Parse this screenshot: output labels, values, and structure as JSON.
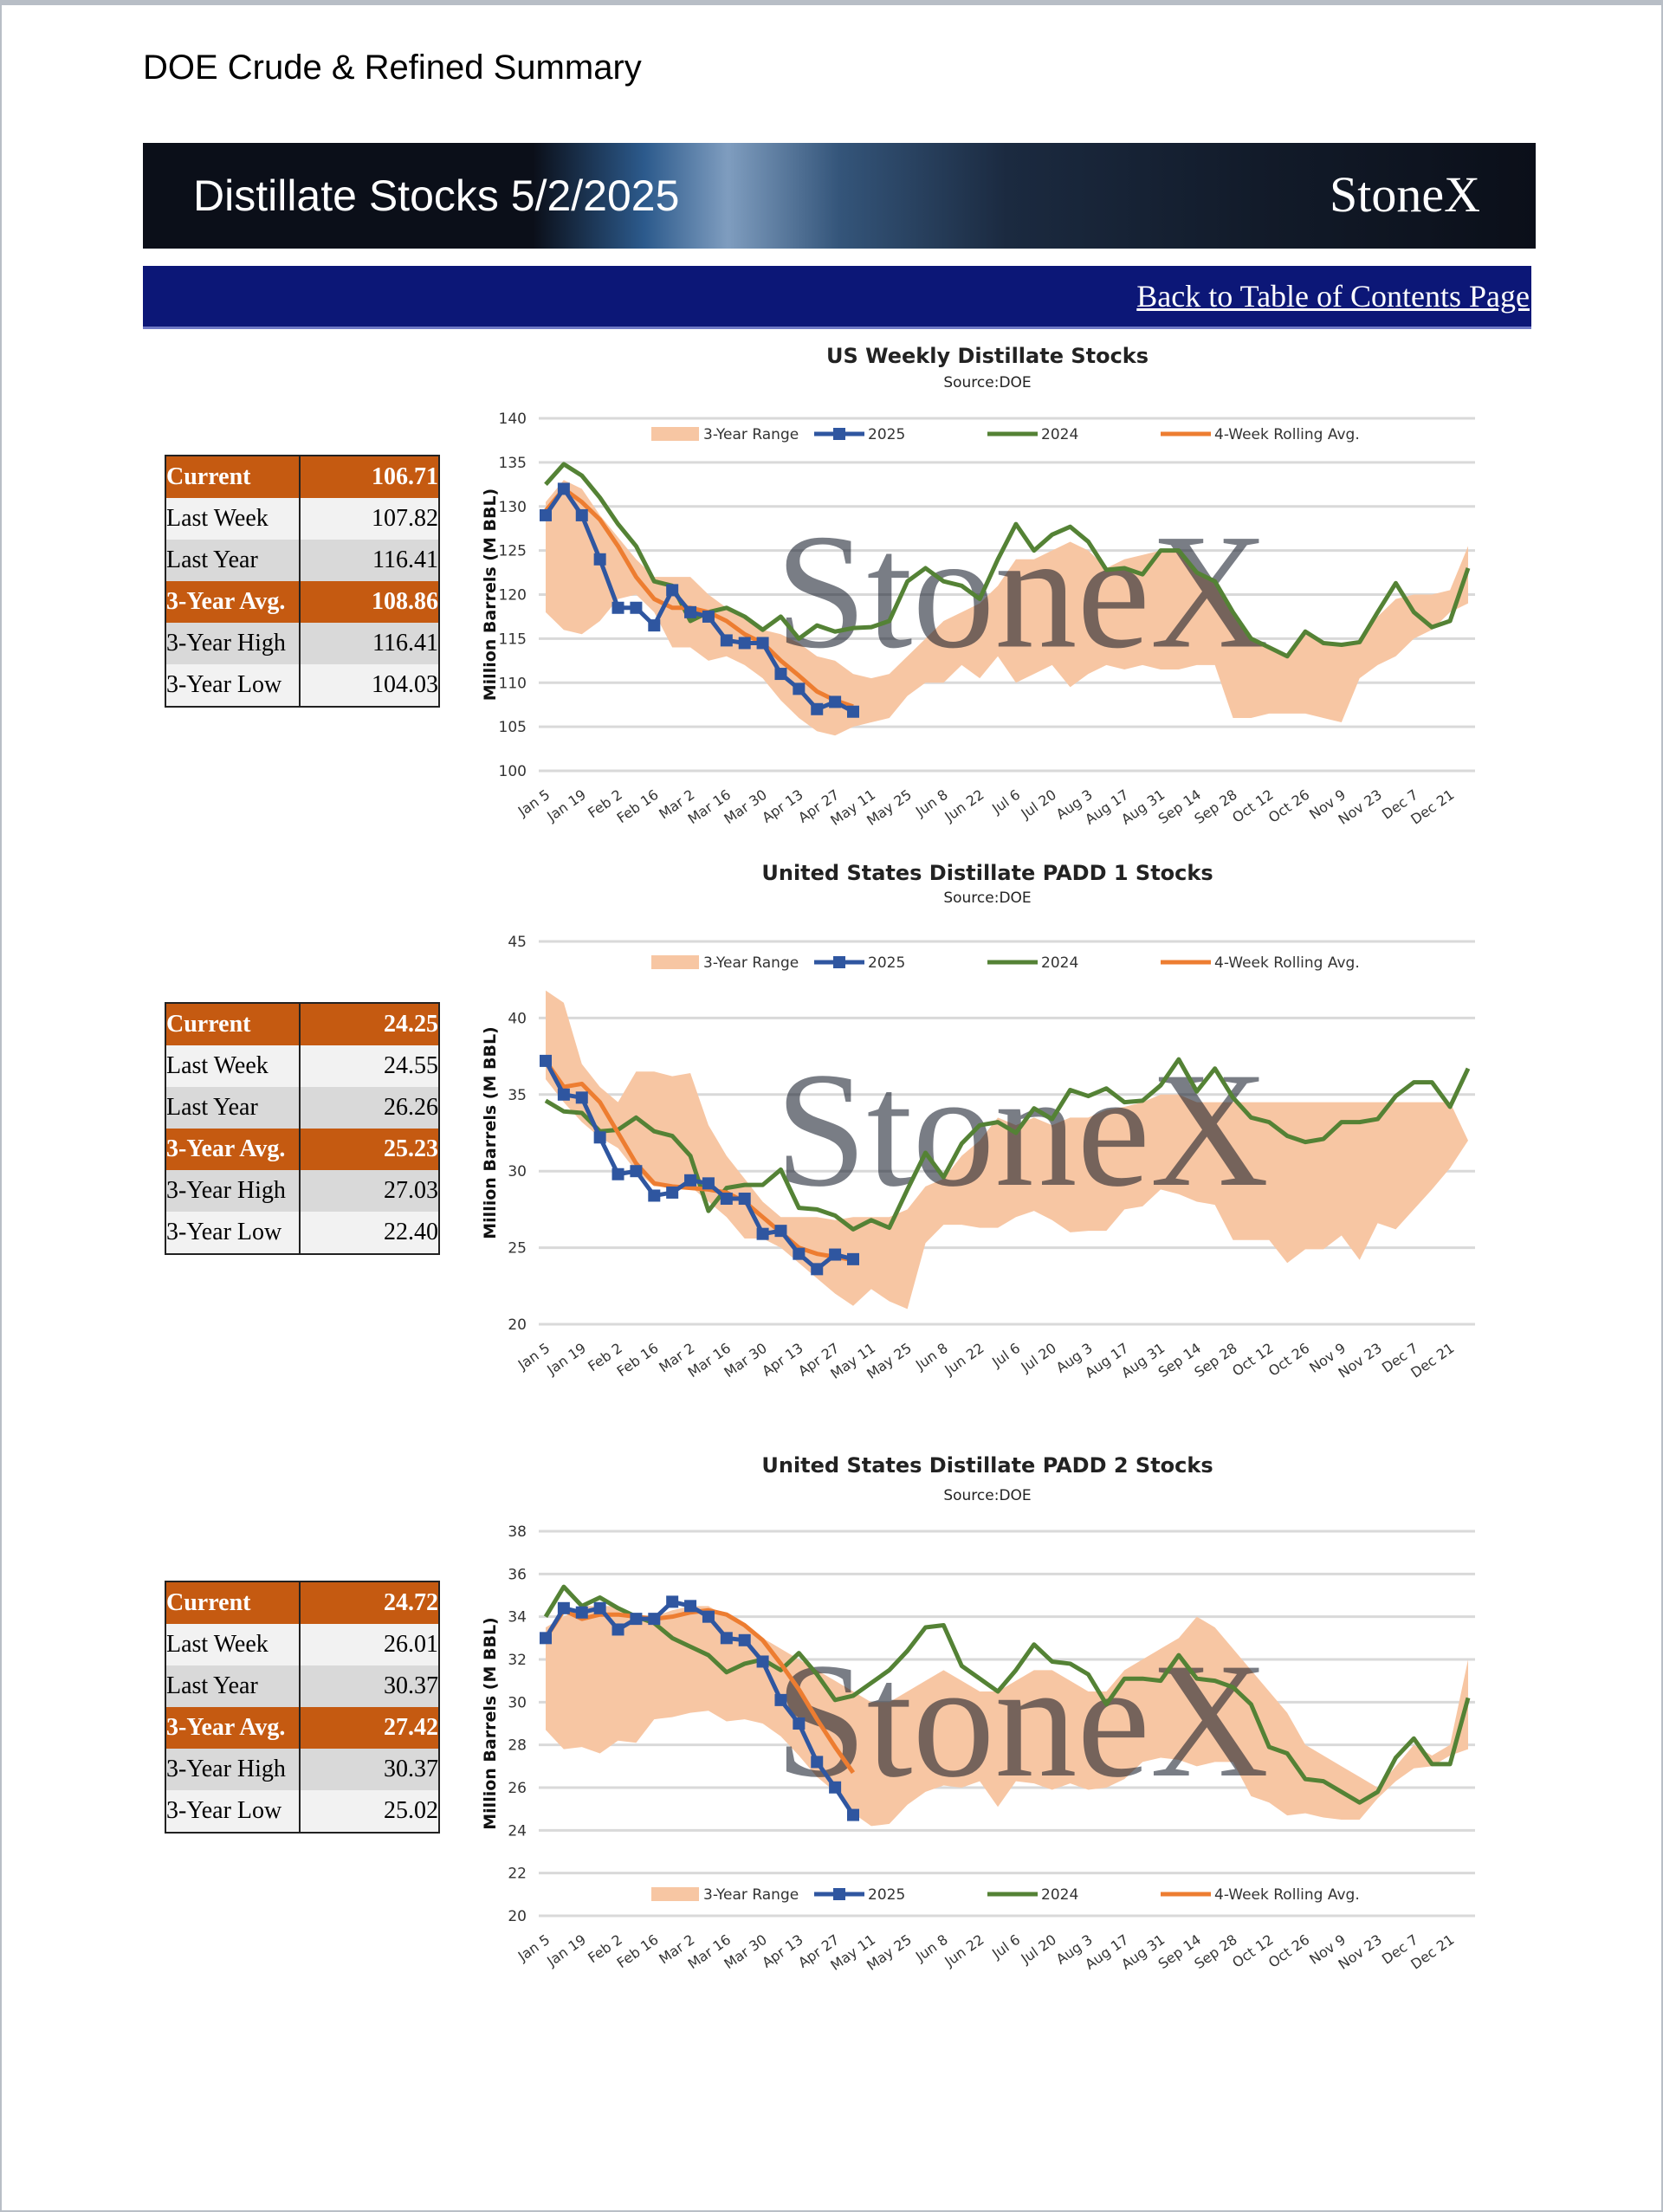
{
  "page": {
    "title": "DOE Crude & Refined Summary"
  },
  "banner": {
    "title": "Distillate Stocks 5/2/2025",
    "logo": "StoneX"
  },
  "nav": {
    "back_link": "Back to Table of Contents Page"
  },
  "colors": {
    "range": "#f7c6a3",
    "s2025": "#2f56a0",
    "s2024": "#548235",
    "rolling": "#ed7d31",
    "highlight_row": "#c55a11",
    "navbar": "#0c1777"
  },
  "tables": [
    {
      "rows": [
        {
          "label": "Current",
          "value": "106.71"
        },
        {
          "label": "Last Week",
          "value": "107.82"
        },
        {
          "label": "Last Year",
          "value": "116.41"
        },
        {
          "label": "3-Year Avg.",
          "value": "108.86"
        },
        {
          "label": "3-Year High",
          "value": "116.41"
        },
        {
          "label": "3-Year Low",
          "value": "104.03"
        }
      ]
    },
    {
      "rows": [
        {
          "label": "Current",
          "value": "24.25"
        },
        {
          "label": "Last Week",
          "value": "24.55"
        },
        {
          "label": "Last Year",
          "value": "26.26"
        },
        {
          "label": "3-Year Avg.",
          "value": "25.23"
        },
        {
          "label": "3-Year High",
          "value": "27.03"
        },
        {
          "label": "3-Year Low",
          "value": "22.40"
        }
      ]
    },
    {
      "rows": [
        {
          "label": "Current",
          "value": "24.72"
        },
        {
          "label": "Last Week",
          "value": "26.01"
        },
        {
          "label": "Last Year",
          "value": "30.37"
        },
        {
          "label": "3-Year Avg.",
          "value": "27.42"
        },
        {
          "label": "3-Year High",
          "value": "30.37"
        },
        {
          "label": "3-Year Low",
          "value": "25.02"
        }
      ]
    }
  ],
  "chart_data": [
    {
      "type": "line",
      "title": "US Weekly Distillate Stocks",
      "subtitle": "Source:DOE",
      "ylabel": "Million Barrels (M BBL)",
      "ylim": [
        100,
        140
      ],
      "yticks": [
        100,
        105,
        110,
        115,
        120,
        125,
        130,
        135,
        140
      ],
      "x_tick_labels": [
        "Jan 5",
        "Jan 19",
        "Feb 2",
        "Feb 16",
        "Mar 2",
        "Mar 16",
        "Mar 30",
        "Apr 13",
        "Apr 27",
        "May 11",
        "May 25",
        "Jun 8",
        "Jun 22",
        "Jul 6",
        "Jul 20",
        "Aug 3",
        "Aug 17",
        "Aug 31",
        "Sep 14",
        "Sep 28",
        "Oct 12",
        "Oct 26",
        "Nov 9",
        "Nov 23",
        "Dec 7",
        "Dec 21"
      ],
      "legend": {
        "position": "top",
        "items": [
          "3-Year Range",
          "2025",
          "2024",
          "4-Week Rolling Avg."
        ]
      },
      "grid": true,
      "watermark": "StoneX",
      "range_high": [
        130.5,
        133,
        132,
        129,
        126.5,
        124,
        122,
        122,
        122,
        120,
        118.5,
        117.5,
        116,
        115.5,
        114.5,
        113,
        112.5,
        111,
        110.5,
        111,
        113,
        115,
        117,
        118,
        119,
        121,
        124,
        124,
        125,
        126,
        125,
        123,
        124,
        124.5,
        125,
        125,
        122.5,
        121.5,
        118,
        115,
        114,
        113,
        115.5,
        114.3,
        114.2,
        114.5,
        117.5,
        119.5,
        120,
        120,
        120.5,
        125.5
      ],
      "range_low": [
        118,
        116,
        115.5,
        117,
        119.5,
        120,
        118,
        114,
        114,
        112.5,
        113,
        112,
        110.5,
        108,
        106,
        104.5,
        104,
        105,
        105.5,
        106,
        108.5,
        110,
        110,
        112,
        110.5,
        113,
        110,
        111,
        112,
        109.5,
        111,
        112,
        111.5,
        112,
        111.5,
        111.5,
        112,
        112,
        106,
        106,
        106.5,
        106.5,
        106.5,
        106,
        105.5,
        110.5,
        112,
        113,
        115,
        116,
        118,
        119
      ],
      "series": [
        {
          "name": "2025",
          "values": [
            129,
            132,
            129,
            124,
            118.5,
            118.5,
            116.5,
            120.5,
            118,
            117.5,
            114.8,
            114.5,
            114.5,
            111,
            109.3,
            107,
            107.82,
            106.71
          ]
        },
        {
          "name": "2024",
          "values": [
            132.5,
            134.8,
            133.5,
            131,
            128,
            125.5,
            121.5,
            121,
            117,
            118,
            118.5,
            117.5,
            116,
            117.5,
            115,
            116.5,
            115.8,
            116.2,
            116.3,
            117,
            121.5,
            123,
            121.5,
            121,
            119.5,
            124,
            128,
            125,
            126.8,
            127.7,
            126,
            122.8,
            123,
            122.3,
            125,
            125,
            122.5,
            121.5,
            118,
            115,
            114,
            113,
            115.8,
            114.5,
            114.3,
            114.6,
            118,
            121.3,
            118,
            116.3,
            117,
            123
          ]
        },
        {
          "name": "4-Week Rolling Avg.",
          "values": [
            129.5,
            132,
            130.5,
            128.5,
            125.5,
            122,
            119.5,
            118.5,
            118.5,
            118,
            117,
            115.5,
            114.5,
            112.5,
            110.8,
            109,
            108,
            107.3
          ]
        }
      ]
    },
    {
      "type": "line",
      "title": "United States Distillate PADD 1 Stocks",
      "subtitle": "Source:DOE",
      "ylabel": "Million Barrels (M BBL)",
      "ylim": [
        20,
        45
      ],
      "yticks": [
        20,
        25,
        30,
        35,
        40,
        45
      ],
      "x_tick_labels": [
        "Jan 5",
        "Jan 19",
        "Feb 2",
        "Feb 16",
        "Mar 2",
        "Mar 16",
        "Mar 30",
        "Apr 13",
        "Apr 27",
        "May 11",
        "May 25",
        "Jun 8",
        "Jun 22",
        "Jul 6",
        "Jul 20",
        "Aug 3",
        "Aug 17",
        "Aug 31",
        "Sep 14",
        "Sep 28",
        "Oct 12",
        "Oct 26",
        "Nov 9",
        "Nov 23",
        "Dec 7",
        "Dec 21"
      ],
      "legend": {
        "position": "top",
        "items": [
          "3-Year Range",
          "2025",
          "2024",
          "4-Week Rolling Avg."
        ]
      },
      "grid": true,
      "watermark": "StoneX",
      "range_high": [
        41.8,
        41,
        37,
        35.5,
        34.5,
        36.5,
        36.5,
        36.2,
        36.4,
        33,
        31,
        29.5,
        28,
        27,
        27,
        27,
        26.8,
        27,
        27,
        27,
        27.5,
        29,
        29.5,
        31,
        32,
        33.5,
        33,
        33.5,
        33,
        33.5,
        33.5,
        34,
        34.2,
        34.5,
        35,
        35,
        34.5,
        34.5,
        34.5,
        34.5,
        34.5,
        34.5,
        34.5,
        34.5,
        34.5,
        34.5,
        34.5,
        34.5,
        34.5,
        34.5,
        34.5,
        32
      ],
      "range_low": [
        36,
        34.5,
        33.2,
        32.2,
        31.5,
        30,
        29,
        29,
        29,
        28,
        27,
        25.6,
        25.6,
        25,
        24,
        23,
        22,
        21.2,
        22.3,
        21.5,
        21,
        25.3,
        26.5,
        26.5,
        26.3,
        26.3,
        27,
        27.4,
        26.8,
        26,
        26.1,
        26.1,
        27.5,
        27.7,
        28.8,
        28.5,
        28,
        27.8,
        25.5,
        25.5,
        25.5,
        24,
        24.9,
        24.9,
        25.8,
        24.2,
        26.6,
        26.2,
        27.5,
        28.8,
        30.2,
        32
      ],
      "series": [
        {
          "name": "2025",
          "values": [
            37.2,
            35,
            34.8,
            32.2,
            29.8,
            30,
            28.4,
            28.6,
            29.4,
            29.2,
            28.2,
            28.2,
            25.9,
            26.1,
            24.6,
            23.6,
            24.55,
            24.25
          ]
        },
        {
          "name": "2024",
          "values": [
            34.6,
            33.9,
            33.8,
            32.6,
            32.7,
            33.5,
            32.6,
            32.3,
            31,
            27.4,
            28.9,
            29.1,
            29.1,
            30.1,
            27.6,
            27.5,
            27.1,
            26.2,
            26.8,
            26.3,
            28.8,
            31.2,
            29.6,
            31.8,
            33,
            33.2,
            32.5,
            34.1,
            33.4,
            35.3,
            34.9,
            35.4,
            34.5,
            34.6,
            35.6,
            37.3,
            35.2,
            36.7,
            34.8,
            33.5,
            33.2,
            32.3,
            31.9,
            32.1,
            33.2,
            33.2,
            33.4,
            34.9,
            35.8,
            35.8,
            34.2,
            36.7
          ]
        },
        {
          "name": "4-Week Rolling Avg.",
          "values": [
            37.2,
            35.5,
            35.7,
            34.5,
            32.5,
            30.5,
            29.2,
            29,
            28.9,
            28.8,
            28.6,
            28,
            27,
            26,
            25,
            24.6,
            24.4,
            24.2
          ]
        }
      ]
    },
    {
      "type": "line",
      "title": "United States Distillate PADD 2 Stocks",
      "subtitle": "Source:DOE",
      "ylabel": "Million Barrels (M BBL)",
      "ylim": [
        20,
        38
      ],
      "yticks": [
        20,
        22,
        24,
        26,
        28,
        30,
        32,
        34,
        36,
        38
      ],
      "x_tick_labels": [
        "Jan 5",
        "Jan 19",
        "Feb 2",
        "Feb 16",
        "Mar 2",
        "Mar 16",
        "Mar 30",
        "Apr 13",
        "Apr 27",
        "May 11",
        "May 25",
        "Jun 8",
        "Jun 22",
        "Jul 6",
        "Jul 20",
        "Aug 3",
        "Aug 17",
        "Aug 31",
        "Sep 14",
        "Sep 28",
        "Oct 12",
        "Oct 26",
        "Nov 9",
        "Nov 23",
        "Dec 7",
        "Dec 21"
      ],
      "legend": {
        "position": "bottom",
        "items": [
          "3-Year Range",
          "2025",
          "2024",
          "4-Week Rolling Avg."
        ]
      },
      "grid": true,
      "watermark": "StoneX",
      "range_high": [
        33.5,
        34,
        34.5,
        34.5,
        34.5,
        34,
        34,
        34.3,
        34.5,
        34.5,
        34,
        33.5,
        33,
        32.5,
        32,
        31.5,
        31,
        30.5,
        30,
        30,
        30.5,
        31,
        31.5,
        31,
        30.5,
        30.5,
        31,
        31.5,
        31.5,
        31,
        30.5,
        30.5,
        31.5,
        32,
        32.5,
        33,
        34,
        33.5,
        32.5,
        31.5,
        30.5,
        29.5,
        28,
        27.5,
        27,
        26.5,
        26,
        27,
        28,
        27.5,
        28,
        32
      ],
      "range_low": [
        28.7,
        27.8,
        27.9,
        27.6,
        28.2,
        28.1,
        29.2,
        29.3,
        29.5,
        29.6,
        29.1,
        29.2,
        29,
        28.4,
        27.5,
        26.5,
        25.8,
        24.8,
        24.2,
        24.3,
        25.2,
        25.8,
        26.1,
        26,
        26.3,
        25.1,
        26.3,
        26.2,
        25.9,
        26.2,
        25.9,
        26,
        26.4,
        27.2,
        27.4,
        27.3,
        27,
        27.2,
        27.2,
        25.6,
        25.3,
        24.7,
        24.8,
        24.6,
        24.5,
        24.5,
        25.5,
        26.3,
        26.9,
        27,
        27.5,
        27.8
      ],
      "series": [
        {
          "name": "2025",
          "values": [
            33,
            34.4,
            34.2,
            34.4,
            33.4,
            33.9,
            33.9,
            34.7,
            34.5,
            34,
            33,
            32.9,
            31.9,
            30.1,
            29,
            27.2,
            26.01,
            24.72
          ]
        },
        {
          "name": "2024",
          "values": [
            34,
            35.4,
            34.5,
            34.9,
            34.4,
            34,
            33.7,
            33,
            32.6,
            32.2,
            31.4,
            31.8,
            32,
            31.5,
            32.3,
            31.3,
            30.1,
            30.3,
            30.9,
            31.5,
            32.4,
            33.5,
            33.6,
            31.7,
            31.1,
            30.5,
            31.5,
            32.7,
            31.9,
            31.8,
            31.3,
            29.9,
            31.1,
            31.1,
            31,
            32.2,
            31.1,
            31,
            30.7,
            29.9,
            27.9,
            27.6,
            26.4,
            26.3,
            25.8,
            25.3,
            25.8,
            27.4,
            28.3,
            27.1,
            27.1,
            30.2
          ]
        },
        {
          "name": "4-Week Rolling Avg.",
          "values": [
            33,
            34.3,
            33.9,
            34.1,
            34.1,
            34,
            33.9,
            34,
            34.2,
            34.3,
            34.1,
            33.6,
            32.9,
            31.8,
            30.6,
            29.2,
            27.9,
            26.7
          ]
        }
      ]
    }
  ]
}
